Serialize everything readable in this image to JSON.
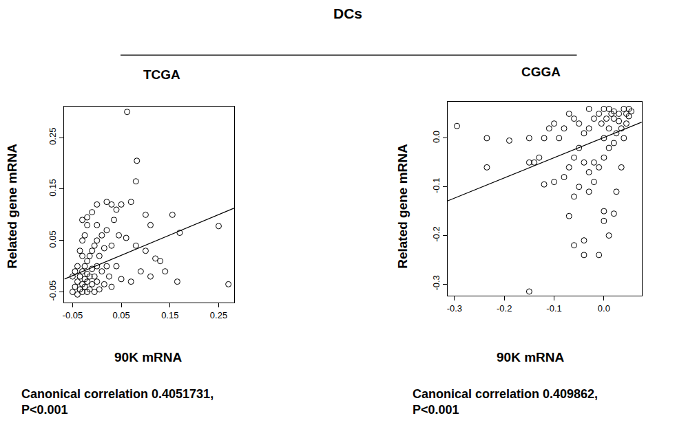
{
  "title": "DCs",
  "chart_data": [
    {
      "type": "scatter",
      "title": "TCGA",
      "x_label": "90K mRNA",
      "y_label": "Related gene mRNA",
      "caption": [
        "Canonical correlation 0.4051731,",
        "P<0.001"
      ],
      "xlim": [
        -0.067,
        0.282
      ],
      "xticks": [
        -0.05,
        0.05,
        0.15,
        0.25
      ],
      "ylim": [
        -0.071,
        0.31
      ],
      "yticks": [
        -0.05,
        0.05,
        0.15,
        0.25
      ],
      "grid": false,
      "series": [
        {
          "type": "scatter",
          "marker": "circle-open",
          "color": "#000000",
          "x": [
            0.062,
            0.082,
            0.08,
            0.25,
            0.27,
            0.17,
            0.165,
            0.155,
            0.14,
            0.12,
            0.11,
            0.1,
            0.09,
            0.07,
            0.05,
            0.04,
            0.03,
            0.02,
            0.0,
            -0.01,
            -0.02,
            -0.03,
            0.06,
            0.08,
            0.1,
            0.13,
            0.11,
            0.07,
            0.05,
            0.03,
            -0.05,
            -0.045,
            -0.04,
            -0.04,
            -0.035,
            -0.035,
            -0.03,
            -0.03,
            -0.03,
            -0.025,
            -0.025,
            -0.025,
            -0.02,
            -0.02,
            -0.02,
            -0.02,
            -0.015,
            -0.015,
            -0.015,
            -0.01,
            -0.01,
            -0.01,
            -0.005,
            -0.005,
            -0.005,
            0.0,
            0.0,
            0.0,
            0.005,
            0.005,
            0.01,
            0.01,
            0.015,
            0.015,
            0.02,
            0.02,
            0.025,
            0.03,
            0.035,
            0.04,
            0.045,
            -0.045,
            -0.04,
            -0.035,
            -0.03,
            -0.025,
            -0.02,
            -0.05,
            -0.03,
            0.0
          ],
          "values": [
            0.3,
            0.205,
            0.165,
            0.078,
            -0.035,
            0.065,
            -0.03,
            0.1,
            -0.01,
            0.015,
            0.08,
            0.1,
            -0.01,
            0.125,
            0.12,
            0.11,
            0.12,
            0.125,
            0.12,
            0.105,
            0.095,
            0.09,
            0.055,
            0.04,
            0.03,
            0.01,
            -0.02,
            -0.03,
            -0.025,
            -0.04,
            -0.05,
            -0.04,
            -0.055,
            -0.03,
            -0.045,
            -0.02,
            -0.05,
            -0.035,
            -0.01,
            -0.04,
            -0.025,
            0.0,
            -0.05,
            -0.03,
            -0.015,
            0.01,
            -0.045,
            -0.02,
            0.02,
            -0.035,
            -0.005,
            0.03,
            -0.05,
            -0.02,
            0.04,
            -0.03,
            0.0,
            0.05,
            -0.045,
            0.02,
            -0.01,
            0.06,
            -0.035,
            0.035,
            0.0,
            0.07,
            -0.02,
            0.04,
            0.09,
            0.0,
            0.06,
            -0.01,
            0.0,
            0.03,
            0.05,
            0.06,
            0.08,
            -0.02,
            0.02,
            0.08
          ]
        },
        {
          "type": "line",
          "line_style": "solid",
          "color": "#000000",
          "x": [
            -0.067,
            0.282
          ],
          "values": [
            -0.025,
            0.113
          ]
        }
      ]
    },
    {
      "type": "scatter",
      "title": "CGGA",
      "x_label": "90K mRNA",
      "y_label": "Related gene mRNA",
      "caption": [
        "Canonical correlation 0.409862,",
        "P<0.001"
      ],
      "xlim": [
        -0.314,
        0.076
      ],
      "xticks": [
        -0.3,
        -0.2,
        -0.1,
        {
          "value": 0,
          "label": "0.0"
        }
      ],
      "ylim": [
        -0.324,
        0.075
      ],
      "yticks": [
        -0.3,
        -0.2,
        -0.1,
        {
          "value": 0,
          "label": "0.0"
        }
      ],
      "grid": false,
      "series": [
        {
          "type": "scatter",
          "marker": "circle-open",
          "color": "#000000",
          "x": [
            0.0,
            0.01,
            0.02,
            0.03,
            0.04,
            0.05,
            0.045,
            0.035,
            0.025,
            0.015,
            0.005,
            -0.005,
            0.03,
            0.05,
            0.04,
            0.02,
            0.01,
            0.0,
            0.045,
            0.055,
            0.02,
            -0.01,
            -0.02,
            -0.03,
            -0.04,
            -0.05,
            -0.06,
            -0.07,
            -0.08,
            -0.09,
            -0.1,
            -0.11,
            -0.12,
            -0.05,
            -0.06,
            -0.07,
            -0.08,
            -0.04,
            -0.03,
            -0.02,
            -0.01,
            -0.05,
            -0.06,
            -0.07,
            -0.06,
            -0.04,
            -0.04,
            0.0,
            0.0,
            -0.01,
            0.01,
            0.02,
            0.025,
            0.035,
            -0.1,
            -0.12,
            -0.13,
            -0.15,
            -0.14,
            -0.15,
            -0.19,
            -0.235,
            -0.235,
            -0.295,
            -0.15,
            -0.03,
            -0.02,
            0.01,
            0.0,
            -0.03
          ],
          "values": [
            0.0,
            0.02,
            0.04,
            0.05,
            0.06,
            0.06,
            0.03,
            0.02,
            0.01,
            0.05,
            0.04,
            0.03,
            0.035,
            0.045,
            0.0,
            -0.01,
            -0.02,
            -0.04,
            0.05,
            0.055,
            0.055,
            0.05,
            0.04,
            0.02,
            0.01,
            0.03,
            0.04,
            0.05,
            0.02,
            0.0,
            0.03,
            0.02,
            0.0,
            -0.02,
            -0.04,
            -0.06,
            -0.08,
            -0.05,
            -0.07,
            -0.09,
            -0.06,
            -0.1,
            -0.12,
            -0.16,
            -0.22,
            -0.21,
            -0.24,
            -0.15,
            -0.17,
            -0.24,
            -0.2,
            -0.155,
            -0.11,
            -0.06,
            -0.09,
            -0.095,
            -0.04,
            -0.05,
            -0.05,
            0.0,
            -0.005,
            0.0,
            -0.06,
            0.025,
            -0.315,
            -0.11,
            -0.05,
            0.06,
            0.06,
            0.06
          ]
        },
        {
          "type": "line",
          "line_style": "solid",
          "color": "#000000",
          "x": [
            -0.314,
            0.076
          ],
          "values": [
            -0.129,
            0.033
          ]
        }
      ]
    }
  ]
}
